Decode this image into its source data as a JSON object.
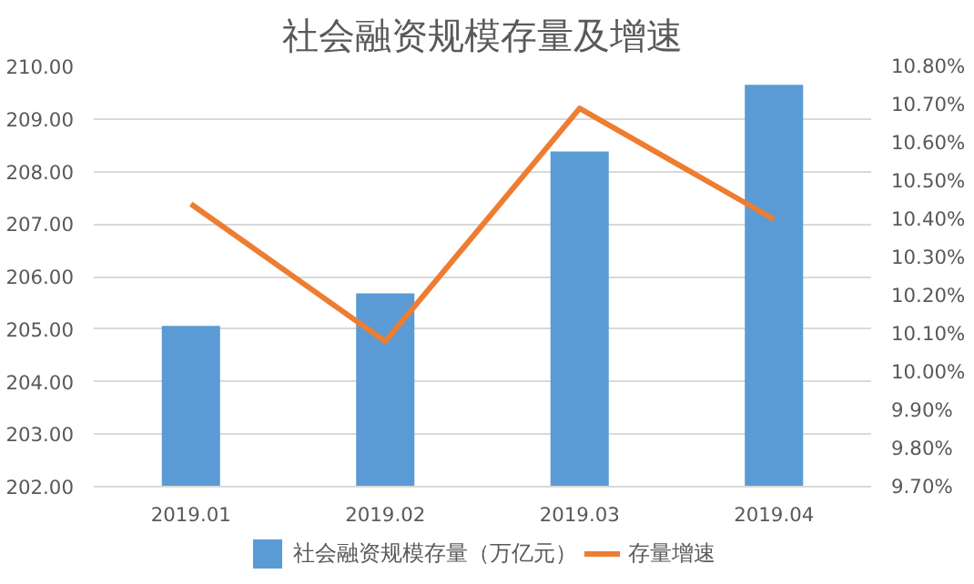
{
  "chart_data": {
    "type": "bar",
    "title": "社会融资规模存量及增速",
    "categories": [
      "2019.01",
      "2019.02",
      "2019.03",
      "2019.04"
    ],
    "series": [
      {
        "name": "社会融资规模存量（万亿元）",
        "color": "#5b9bd5",
        "values": [
          205.06,
          205.68,
          208.38,
          209.65
        ]
      },
      {
        "name": "存量增速",
        "type": "line",
        "axis": "y2",
        "color": "#ed7d31",
        "values": [
          10.44,
          10.08,
          10.69,
          10.4
        ]
      }
    ],
    "ylim": [
      202,
      210
    ],
    "yticks": [
      {
        "value": 202,
        "label": "202.00"
      },
      {
        "value": 203,
        "label": "203.00"
      },
      {
        "value": 204,
        "label": "204.00"
      },
      {
        "value": 205,
        "label": "205.00"
      },
      {
        "value": 206,
        "label": "206.00"
      },
      {
        "value": 207,
        "label": "207.00"
      },
      {
        "value": 208,
        "label": "208.00"
      },
      {
        "value": 209,
        "label": "209.00"
      },
      {
        "value": 210,
        "label": "210.00"
      }
    ],
    "y2lim": [
      9.7,
      10.8
    ],
    "y2ticks": [
      {
        "value": 9.7,
        "label": "9.70%"
      },
      {
        "value": 9.8,
        "label": "9.80%"
      },
      {
        "value": 9.9,
        "label": "9.90%"
      },
      {
        "value": 10.0,
        "label": "10.00%"
      },
      {
        "value": 10.1,
        "label": "10.10%"
      },
      {
        "value": 10.2,
        "label": "10.20%"
      },
      {
        "value": 10.3,
        "label": "10.30%"
      },
      {
        "value": 10.4,
        "label": "10.40%"
      },
      {
        "value": 10.5,
        "label": "10.50%"
      },
      {
        "value": 10.6,
        "label": "10.60%"
      },
      {
        "value": 10.7,
        "label": "10.70%"
      },
      {
        "value": 10.8,
        "label": "10.80%"
      }
    ],
    "grid": "y",
    "legend": "bottom"
  }
}
